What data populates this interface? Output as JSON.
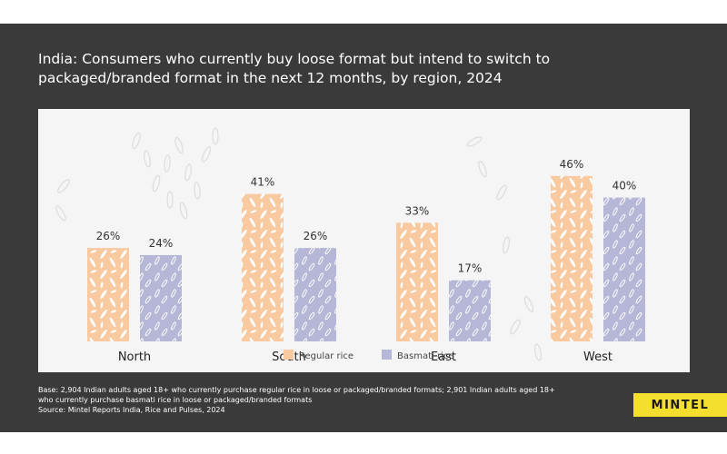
{
  "chart_data": {
    "type": "bar",
    "title": "India: Consumers who currently buy loose format but intend to switch to packaged/branded format in the next 12 months, by region, 2024",
    "categories": [
      "North",
      "South",
      "East",
      "West"
    ],
    "series": [
      {
        "name": "Regular rice",
        "values": [
          26,
          41,
          33,
          46
        ],
        "labels": [
          "26%",
          "41%",
          "33%",
          "46%"
        ],
        "color": "#f9c9a0"
      },
      {
        "name": "Basmati rice",
        "values": [
          24,
          26,
          17,
          40
        ],
        "labels": [
          "24%",
          "26%",
          "17%",
          "40%"
        ],
        "color": "#b6b6d6"
      }
    ],
    "ylim": [
      0,
      50
    ],
    "grid": false,
    "legend_position": "bottom-center"
  },
  "footnote": {
    "base": "Base: 2,904 Indian adults aged 18+ who currently purchase regular rice in loose or packaged/branded formats; 2,901 Indian adults aged 18+ who currently purchase basmati rice in loose or packaged/branded formats",
    "source": "Source: Mintel Reports India, Rice and Pulses, 2024"
  },
  "brand": {
    "name": "MINTEL",
    "color": "#f5df2e"
  },
  "colors": {
    "panel": "#3a3a3a",
    "chart_bg": "#f5f5f5",
    "text_dark": "#333333"
  }
}
